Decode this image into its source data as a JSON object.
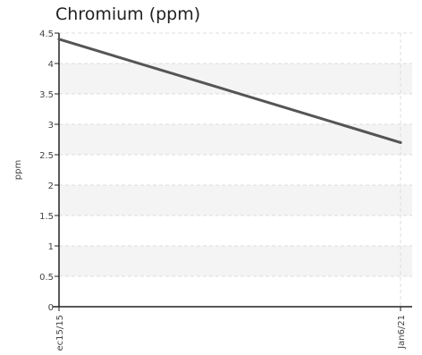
{
  "chart_data": {
    "type": "line",
    "title": "Chromium (ppm)",
    "xlabel": "",
    "ylabel": "ppm",
    "x": [
      "ec15/15",
      "Jan6/21"
    ],
    "series": [
      {
        "values": [
          4.4,
          2.7
        ]
      }
    ],
    "ylim": [
      0,
      4.5
    ],
    "yticks": [
      "0",
      "0.5",
      "1",
      "1.5",
      "2",
      "2.5",
      "3",
      "3.5",
      "4",
      "4.5"
    ],
    "grid": true,
    "alternating_bands": true,
    "colors": {
      "line": "#555555",
      "band": "#f4f4f4",
      "grid": "#dddddd",
      "axis": "#222222"
    }
  }
}
